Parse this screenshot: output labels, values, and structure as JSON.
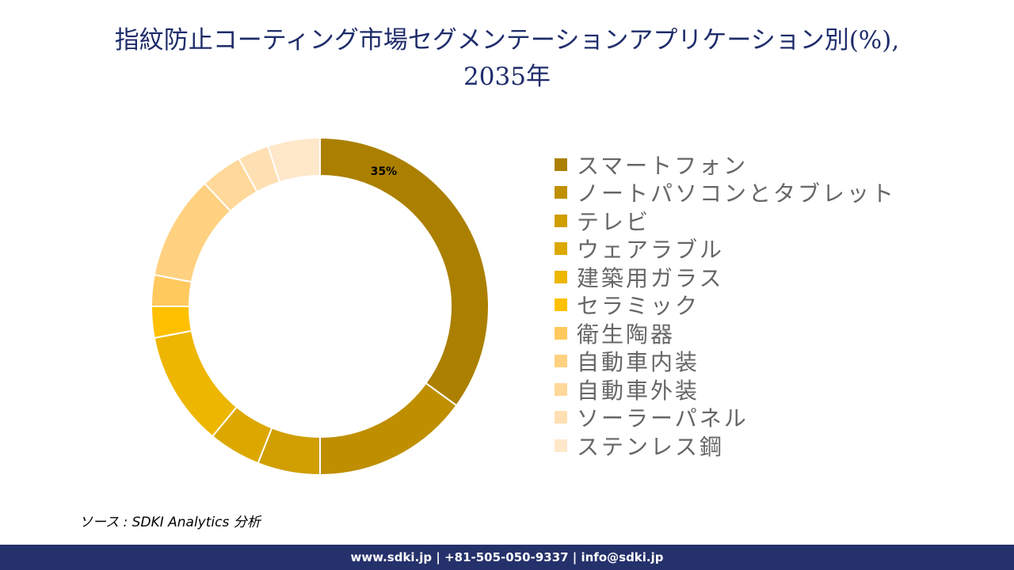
{
  "title": "指紋防止コーティング市場セグメンテーションアプリケーション別(%), 2035年",
  "title_line1": "指紋防止コーティング市場セグメンテーションアプリケーション別(%),",
  "title_line2": "2035年",
  "chart_data": {
    "type": "pie",
    "subtype": "donut",
    "title": "指紋防止コーティング市場セグメンテーションアプリケーション別(%), 2035年",
    "legend_position": "right",
    "categories": [
      "スマートフォン",
      "ノートパソコンとタブレット",
      "テレビ",
      "ウェアラブル",
      "建築用ガラス",
      "セラミック",
      "衛生陶器",
      "自動車内装",
      "自動車外装",
      "ソーラーパネル",
      "ステンレス鋼"
    ],
    "values": [
      35,
      15,
      6,
      5,
      11,
      3,
      3,
      10,
      4,
      3,
      5
    ],
    "colors": [
      "#AB8000",
      "#BF8F00",
      "#D09E00",
      "#DCA800",
      "#EDB600",
      "#FFC000",
      "#FFC95E",
      "#FFD180",
      "#FFD89A",
      "#FFE0B2",
      "#FFE7CA"
    ],
    "data_labels": [
      {
        "index": 0,
        "text": "35%"
      }
    ]
  },
  "source": "ソース : SDKI Analytics 分析",
  "footer": "www.sdki.jp | +81-505-050-9337 | info@sdki.jp"
}
